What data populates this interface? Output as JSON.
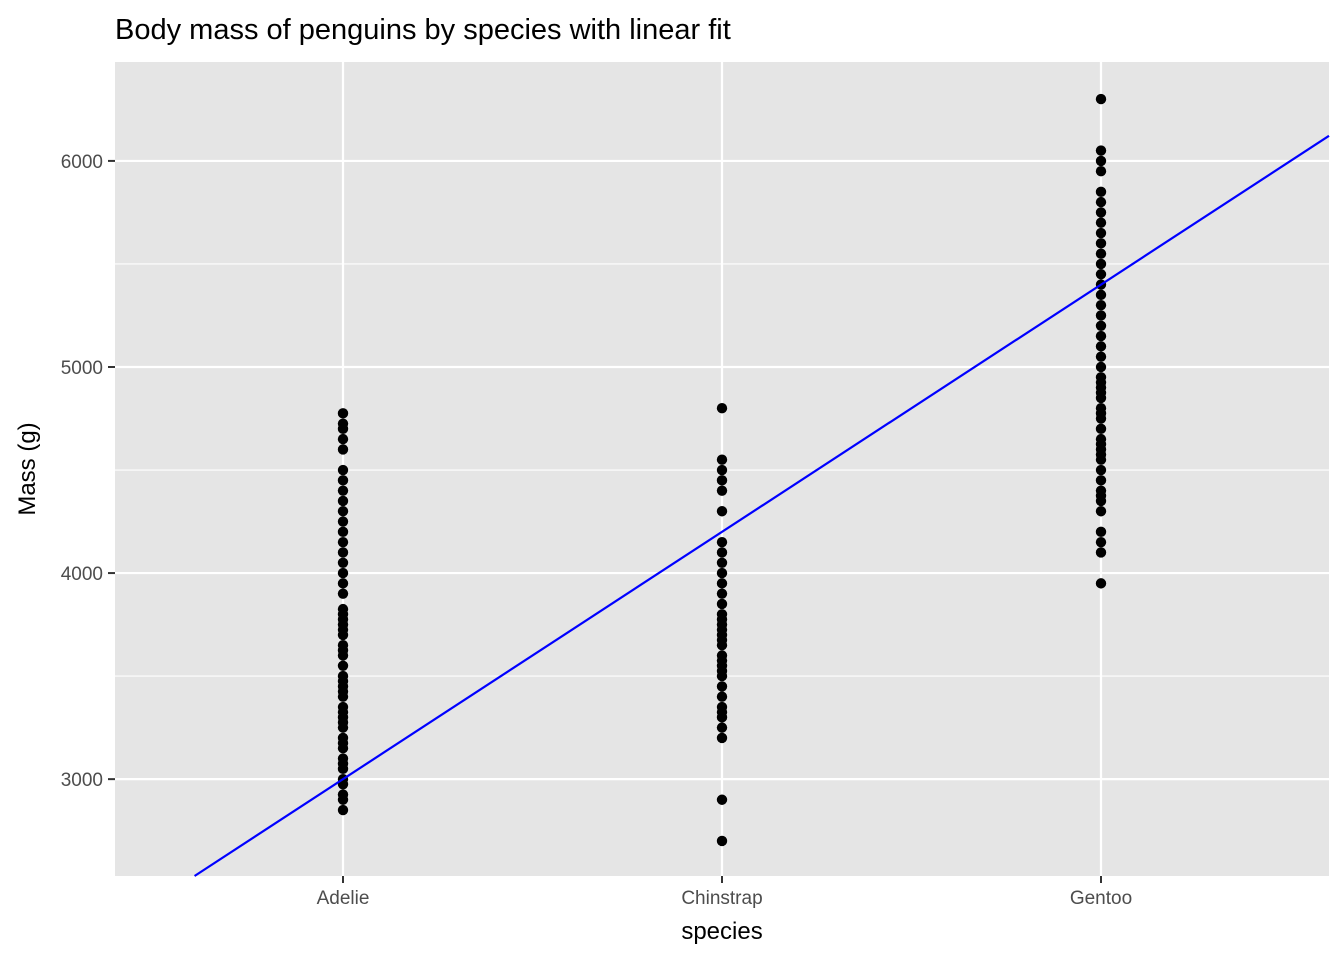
{
  "chart_data": {
    "type": "scatter",
    "title": "Body mass of penguins by species with linear fit",
    "xlabel": "species",
    "ylabel": "Mass (g)",
    "categories": [
      "Adelie",
      "Chinstrap",
      "Gentoo"
    ],
    "y_ticks": [
      3000,
      4000,
      5000,
      6000
    ],
    "ylim": [
      2530,
      6480
    ],
    "grid": true,
    "colors": {
      "panel": "#e5e5e5",
      "grid": "#ffffff",
      "points": "#000000",
      "fit_line": "#0000ff",
      "tick_text": "#4d4d4d"
    },
    "series": [
      {
        "category": "Adelie",
        "values": [
          2850,
          2900,
          2925,
          2975,
          3000,
          3050,
          3075,
          3100,
          3150,
          3175,
          3200,
          3250,
          3275,
          3300,
          3325,
          3350,
          3400,
          3425,
          3450,
          3475,
          3500,
          3550,
          3600,
          3625,
          3650,
          3700,
          3725,
          3750,
          3775,
          3800,
          3825,
          3900,
          3950,
          4000,
          4050,
          4100,
          4150,
          4200,
          4250,
          4300,
          4350,
          4400,
          4450,
          4500,
          4600,
          4650,
          4700,
          4725,
          4775
        ]
      },
      {
        "category": "Chinstrap",
        "values": [
          2700,
          2900,
          3200,
          3250,
          3300,
          3325,
          3350,
          3400,
          3450,
          3500,
          3525,
          3550,
          3575,
          3600,
          3650,
          3675,
          3700,
          3725,
          3750,
          3775,
          3800,
          3850,
          3900,
          3950,
          4000,
          4050,
          4100,
          4150,
          4300,
          4400,
          4450,
          4500,
          4550,
          4800
        ]
      },
      {
        "category": "Gentoo",
        "values": [
          3950,
          4100,
          4150,
          4200,
          4300,
          4350,
          4375,
          4400,
          4450,
          4500,
          4550,
          4575,
          4600,
          4625,
          4650,
          4700,
          4750,
          4775,
          4800,
          4850,
          4875,
          4900,
          4925,
          4950,
          5000,
          5050,
          5100,
          5150,
          5200,
          5250,
          5300,
          5350,
          5400,
          5450,
          5500,
          5550,
          5600,
          5650,
          5700,
          5750,
          5800,
          5850,
          5950,
          6000,
          6050,
          6300
        ]
      }
    ],
    "linear_fit": {
      "slope_per_category": 1200,
      "value_at_Adelie": 3000
    }
  }
}
